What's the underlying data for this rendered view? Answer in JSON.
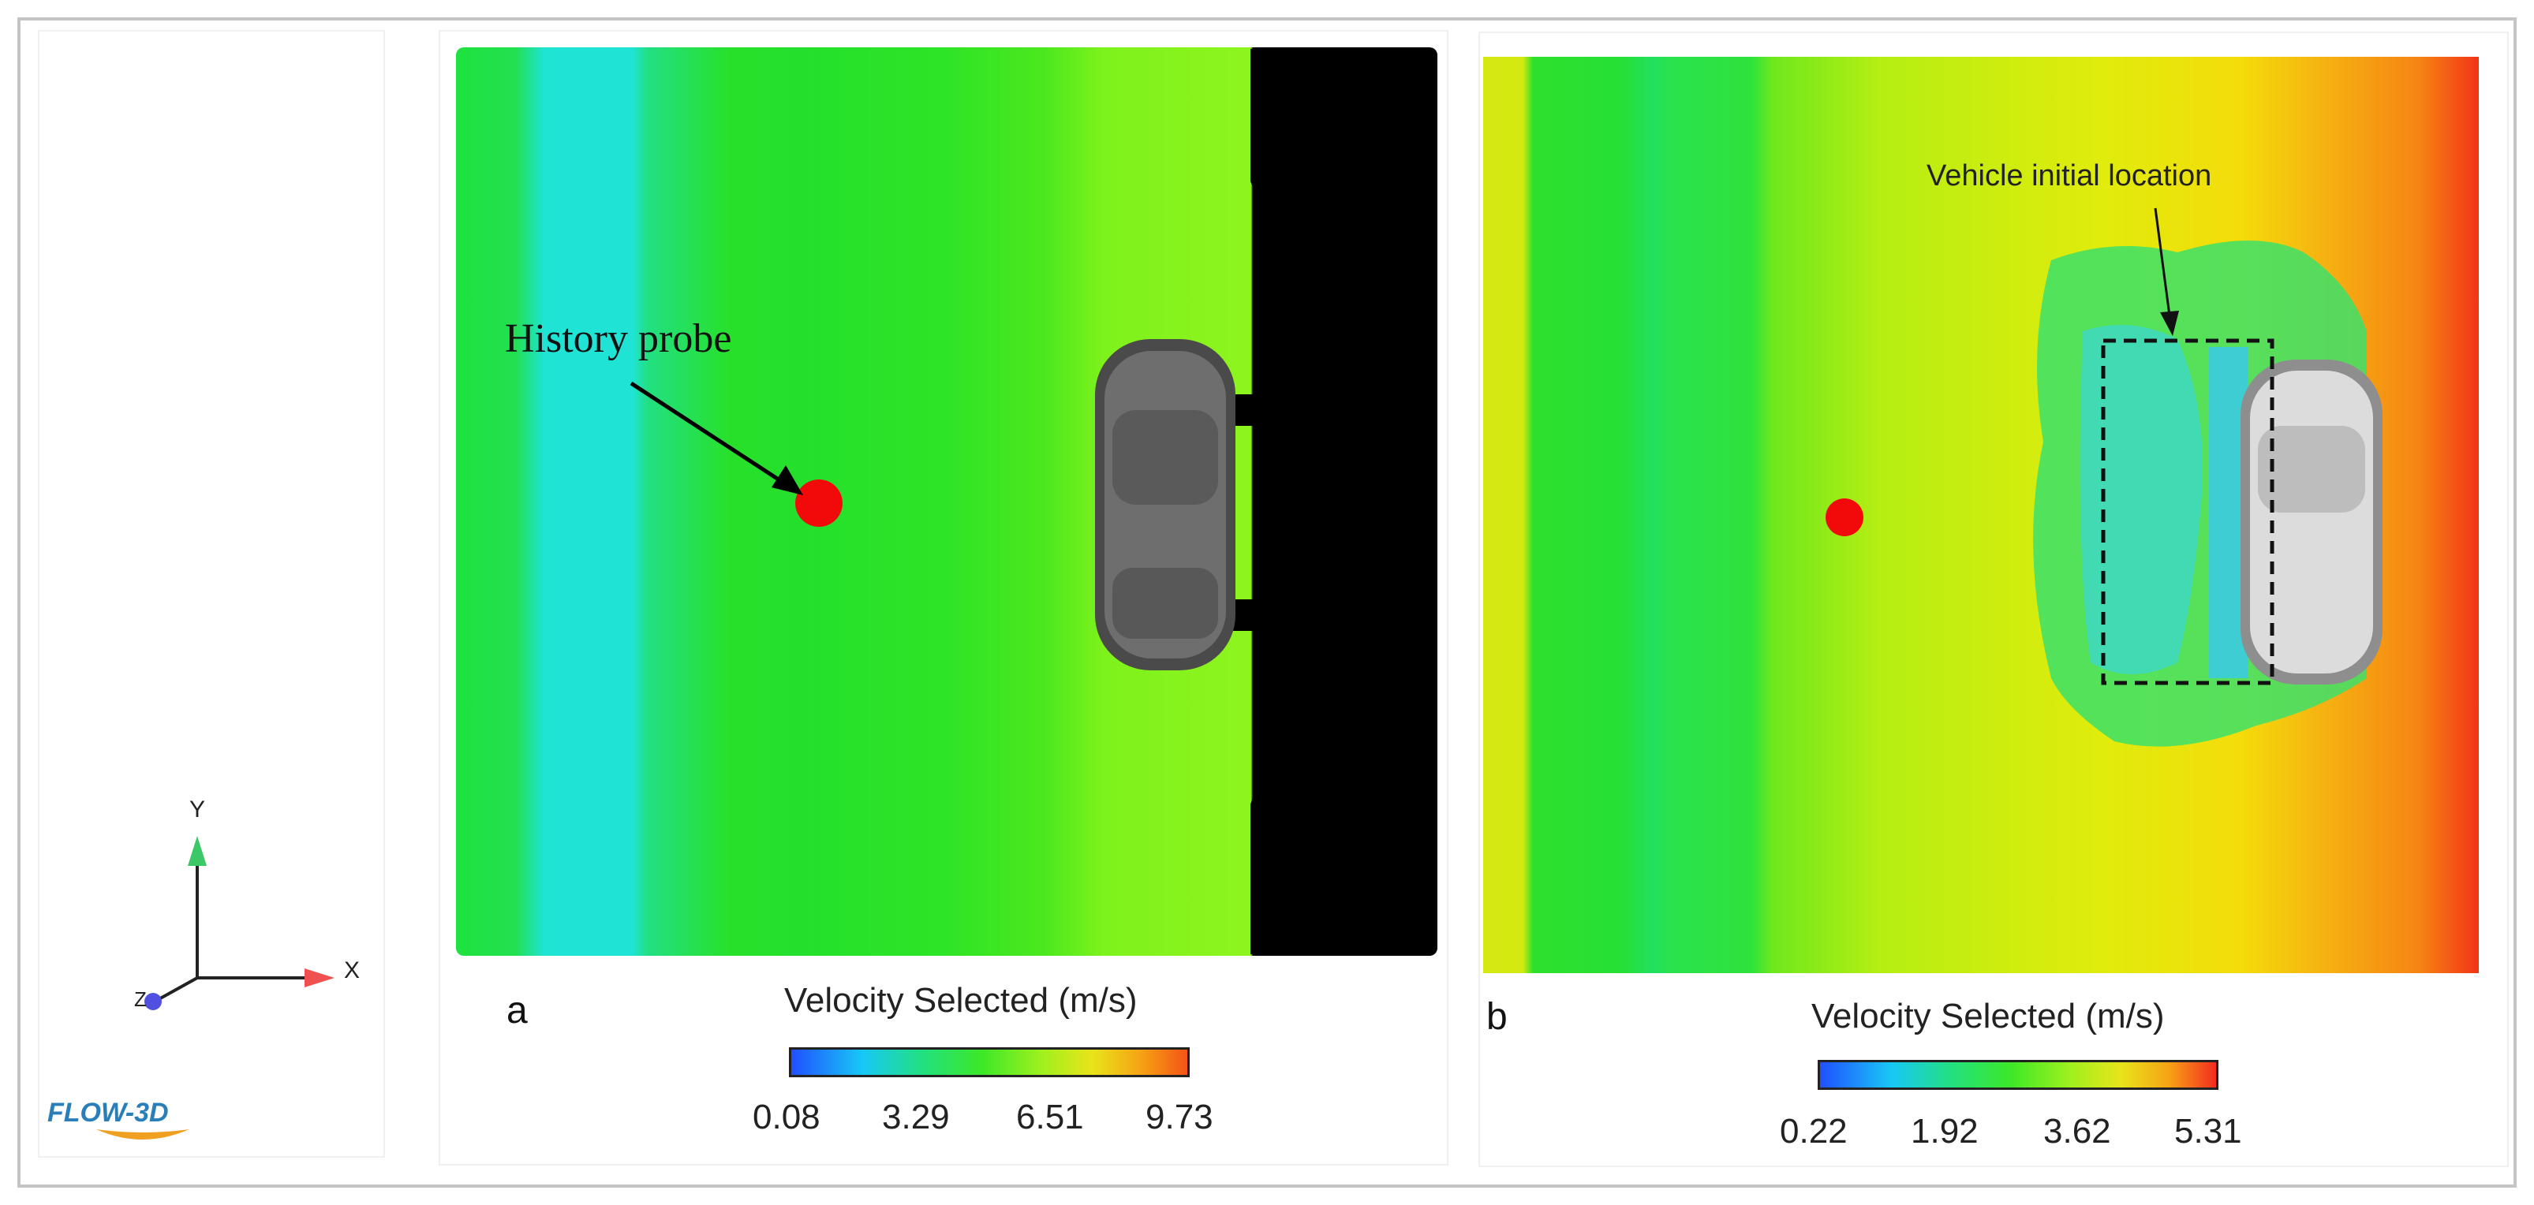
{
  "axis_triad": {
    "x_label": "X",
    "y_label": "Y",
    "z_label": "Z",
    "logo_text": "FLOW-3D",
    "colors": {
      "x_axis": "#f05050",
      "y_axis": "#3cc866",
      "z_axis": "#5050e0"
    }
  },
  "panel_a": {
    "letter": "a",
    "probe_label": "History probe",
    "colorbar": {
      "title": "Velocity Selected (m/s)",
      "ticks": [
        "0.08",
        "3.29",
        "6.51",
        "9.73"
      ]
    }
  },
  "panel_b": {
    "letter": "b",
    "annotation": "Vehicle initial location",
    "colorbar": {
      "title": "Velocity Selected (m/s)",
      "ticks": [
        "0.22",
        "1.92",
        "3.62",
        "5.31"
      ]
    }
  },
  "colors": {
    "probe": "#f20a0a",
    "frame": "#c4c4c4",
    "vehicle": "#6b6b6b"
  }
}
